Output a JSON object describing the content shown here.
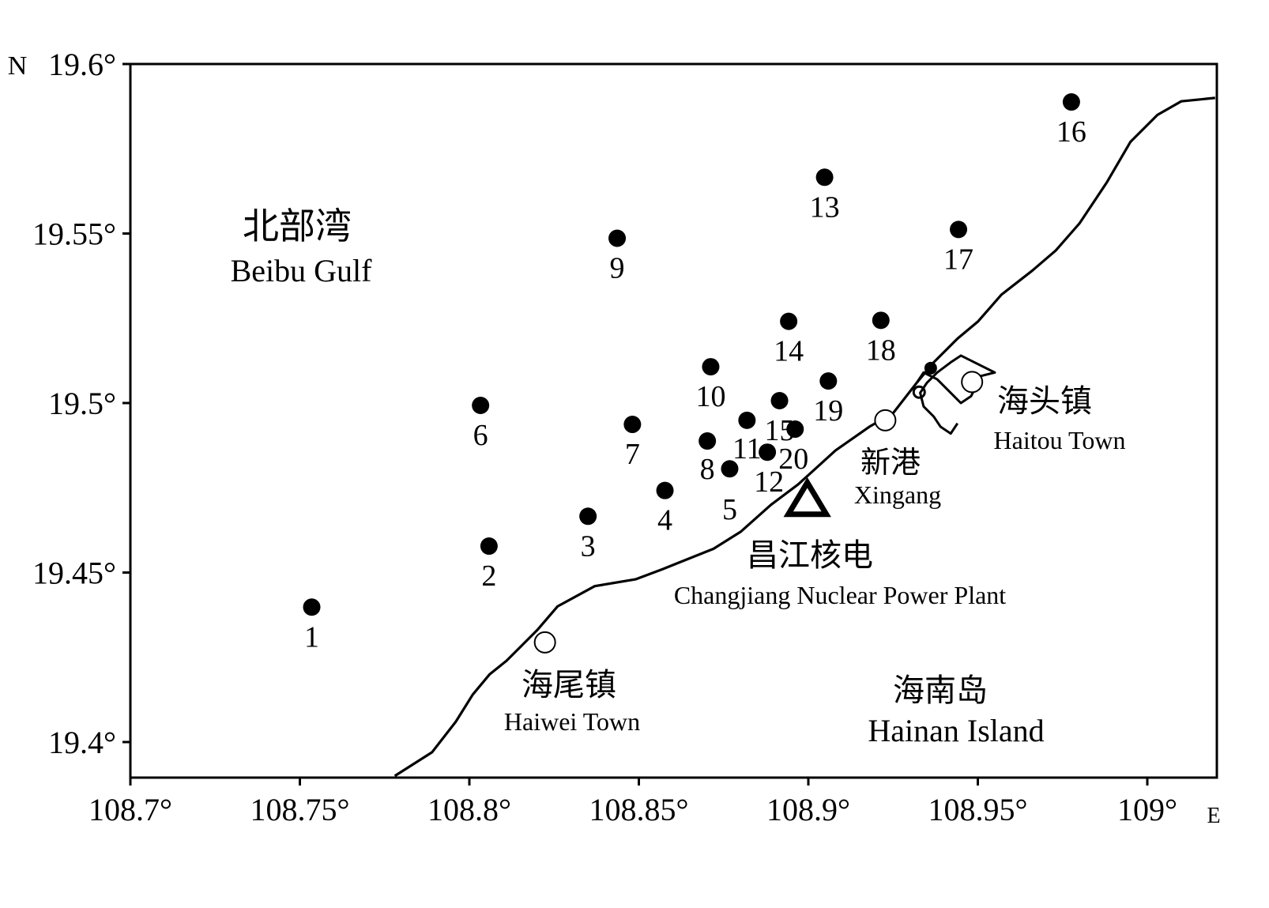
{
  "map": {
    "colors": {
      "ink": "#000000",
      "background": "#ffffff"
    },
    "axes": {
      "lon_min": 108.7,
      "lon_max": 109.02,
      "lat_min": 19.39,
      "lat_max": 19.6,
      "north_label": "N",
      "east_label": "E",
      "x_ticks": [
        {
          "value": 108.7,
          "label": "108.7°"
        },
        {
          "value": 108.75,
          "label": "108.75°"
        },
        {
          "value": 108.8,
          "label": "108.8°"
        },
        {
          "value": 108.85,
          "label": "108.85°"
        },
        {
          "value": 108.9,
          "label": "108.9°"
        },
        {
          "value": 108.95,
          "label": "108.95°"
        },
        {
          "value": 109.0,
          "label": "109°"
        }
      ],
      "y_ticks": [
        {
          "value": 19.6,
          "label": "19.6°"
        },
        {
          "value": 19.55,
          "label": "19.55°"
        },
        {
          "value": 19.5,
          "label": "19.5°"
        },
        {
          "value": 19.45,
          "label": "19.45°"
        },
        {
          "value": 19.4,
          "label": "19.4°"
        }
      ]
    },
    "coastline": [
      [
        108.778,
        19.39
      ],
      [
        108.789,
        19.397
      ],
      [
        108.796,
        19.406
      ],
      [
        108.801,
        19.414
      ],
      [
        108.806,
        19.42
      ],
      [
        108.811,
        19.424
      ],
      [
        108.815,
        19.428
      ],
      [
        108.82,
        19.433
      ],
      [
        108.826,
        19.44
      ],
      [
        108.837,
        19.446
      ],
      [
        108.849,
        19.448
      ],
      [
        108.857,
        19.451
      ],
      [
        108.862,
        19.453
      ],
      [
        108.872,
        19.457
      ],
      [
        108.88,
        19.462
      ],
      [
        108.889,
        19.47
      ],
      [
        108.897,
        19.476
      ],
      [
        108.908,
        19.486
      ],
      [
        108.918,
        19.493
      ],
      [
        108.925,
        19.497
      ],
      [
        108.932,
        19.506
      ],
      [
        108.937,
        19.512
      ],
      [
        108.944,
        19.519
      ],
      [
        108.95,
        19.524
      ],
      [
        108.957,
        19.532
      ],
      [
        108.966,
        19.539
      ],
      [
        108.973,
        19.545
      ],
      [
        108.98,
        19.553
      ],
      [
        108.988,
        19.565
      ],
      [
        108.995,
        19.577
      ],
      [
        109.003,
        19.585
      ],
      [
        109.01,
        19.589
      ],
      [
        109.02,
        19.59
      ]
    ],
    "estuary": [
      [
        108.932,
        19.506
      ],
      [
        108.934,
        19.509
      ],
      [
        108.938,
        19.507
      ],
      [
        108.941,
        19.504
      ],
      [
        108.945,
        19.5
      ],
      [
        108.948,
        19.502
      ],
      [
        108.951,
        19.508
      ],
      [
        108.955,
        19.509
      ],
      [
        108.951,
        19.511
      ],
      [
        108.945,
        19.514
      ],
      [
        108.942,
        19.512
      ],
      [
        108.938,
        19.509
      ],
      [
        108.935,
        19.506
      ],
      [
        108.933,
        19.503
      ],
      [
        108.934,
        19.499
      ],
      [
        108.937,
        19.496
      ],
      [
        108.939,
        19.493
      ],
      [
        108.942,
        19.491
      ],
      [
        108.944,
        19.494
      ]
    ],
    "islet": {
      "lon": 108.9327,
      "lat": 19.5032
    },
    "stations": [
      {
        "id": "1",
        "lon": 108.7535,
        "lat": 19.4398
      },
      {
        "id": "2",
        "lon": 108.8058,
        "lat": 19.4578
      },
      {
        "id": "3",
        "lon": 108.835,
        "lat": 19.4666
      },
      {
        "id": "4",
        "lon": 108.8577,
        "lat": 19.4742
      },
      {
        "id": "5",
        "lon": 108.8768,
        "lat": 19.4806
      },
      {
        "id": "6",
        "lon": 108.8033,
        "lat": 19.4993
      },
      {
        "id": "7",
        "lon": 108.8481,
        "lat": 19.4937
      },
      {
        "id": "8",
        "lon": 108.8702,
        "lat": 19.4888
      },
      {
        "id": "9",
        "lon": 108.8436,
        "lat": 19.5486
      },
      {
        "id": "10",
        "lon": 108.8712,
        "lat": 19.5107
      },
      {
        "id": "11",
        "lon": 108.8819,
        "lat": 19.4949
      },
      {
        "id": "12",
        "lon": 108.8879,
        "lat": 19.4855
      },
      {
        "id": "13",
        "lon": 108.9048,
        "lat": 19.5666
      },
      {
        "id": "14",
        "lon": 108.8942,
        "lat": 19.5241
      },
      {
        "id": "15",
        "lon": 108.8915,
        "lat": 19.5007
      },
      {
        "id": "16",
        "lon": 108.9776,
        "lat": 19.5888
      },
      {
        "id": "17",
        "lon": 108.9443,
        "lat": 19.5512
      },
      {
        "id": "18",
        "lon": 108.9214,
        "lat": 19.5244
      },
      {
        "id": "19",
        "lon": 108.9059,
        "lat": 19.5065
      },
      {
        "id": "20",
        "lon": 108.8961,
        "lat": 19.4923
      }
    ],
    "extra_dot": {
      "lon": 108.9361,
      "lat": 19.5103
    },
    "towns": [
      {
        "key": "haiwei",
        "lon": 108.8223,
        "lat": 19.4294
      },
      {
        "key": "xingang",
        "lon": 108.9227,
        "lat": 19.4949
      },
      {
        "key": "haitou",
        "lon": 108.9483,
        "lat": 19.5062
      }
    ],
    "plant": {
      "lon": 108.8997,
      "lat": 19.4714
    },
    "labels": {
      "gulf_cn": "北部湾",
      "gulf_en": "Beibu Gulf",
      "island_cn": "海南岛",
      "island_en": "Hainan Island",
      "haiwei_cn": "海尾镇",
      "haiwei_en": "Haiwei Town",
      "xingang_cn": "新港",
      "xingang_en": "Xingang",
      "haitou_cn": "海头镇",
      "haitou_en": "Haitou Town",
      "plant_cn": "昌江核电",
      "plant_en": "Changjiang Nuclear Power Plant"
    }
  }
}
